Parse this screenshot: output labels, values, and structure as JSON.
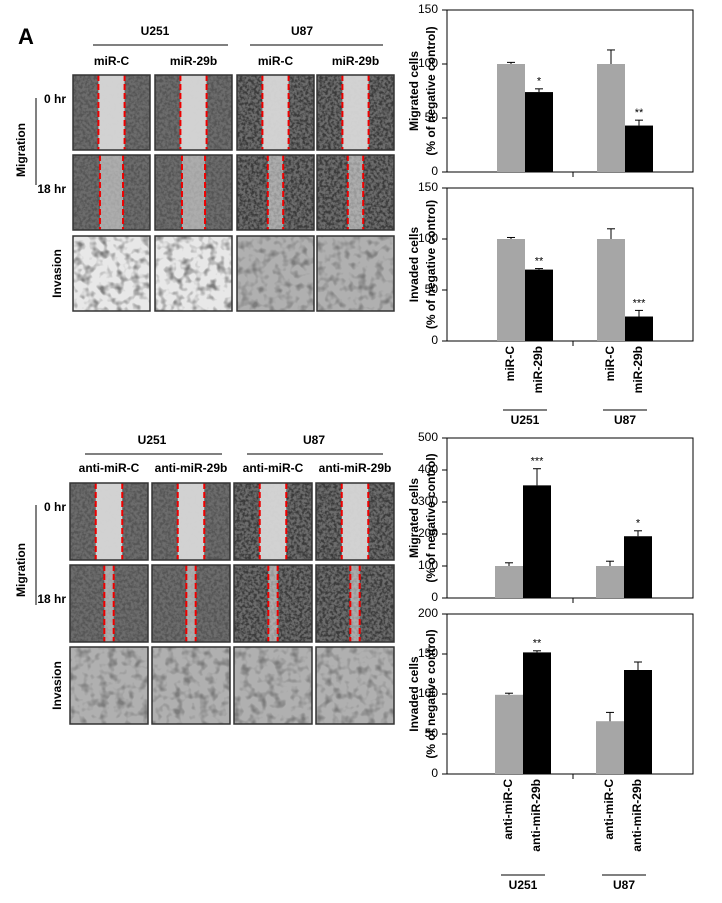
{
  "panel_label": "A",
  "top_panel": {
    "cell_lines": [
      "U251",
      "U87"
    ],
    "conditions": [
      "miR-C",
      "miR-29b",
      "miR-C",
      "miR-29b"
    ],
    "assay_label": "Migration",
    "time_points": [
      "0 hr",
      "18 hr"
    ],
    "invasion_label": "Invasion"
  },
  "bottom_panel": {
    "cell_lines": [
      "U251",
      "U87"
    ],
    "conditions": [
      "anti-miR-C",
      "anti-miR-29b",
      "anti-miR-C",
      "anti-miR-29b"
    ],
    "assay_label": "Migration",
    "time_points": [
      "0 hr",
      "18 hr"
    ],
    "invasion_label": "Invasion"
  },
  "chart_data": [
    {
      "type": "bar",
      "ylabel": [
        "Migrated cells",
        "(% of negative control)"
      ],
      "ylim": [
        0,
        150
      ],
      "yticks": [
        0,
        50,
        100,
        150
      ],
      "series": [
        {
          "color": "#a6a6a6",
          "values": [
            100,
            100
          ],
          "errors": [
            1.5,
            13
          ]
        },
        {
          "color": "#000000",
          "values": [
            74,
            43
          ],
          "errors": [
            3,
            5
          ],
          "significance": [
            "*",
            "**"
          ]
        }
      ]
    },
    {
      "type": "bar",
      "ylabel": [
        "Invaded cells",
        "(% of negative control)"
      ],
      "ylim": [
        0,
        150
      ],
      "yticks": [
        0,
        50,
        100,
        150
      ],
      "categories": [
        "U251",
        "U87"
      ],
      "series": [
        {
          "name": "miR-C",
          "color": "#a6a6a6",
          "values": [
            100,
            100
          ],
          "errors": [
            1.5,
            10
          ]
        },
        {
          "name": "miR-29b",
          "color": "#000000",
          "values": [
            70,
            24
          ],
          "errors": [
            1,
            6
          ],
          "significance": [
            "**",
            "***"
          ]
        }
      ]
    },
    {
      "type": "bar",
      "ylabel": [
        "Migrated cells",
        "(% of negative control)"
      ],
      "ylim": [
        0,
        500
      ],
      "yticks": [
        0,
        100,
        200,
        300,
        400,
        500
      ],
      "series": [
        {
          "color": "#a6a6a6",
          "values": [
            100,
            100
          ],
          "errors": [
            10,
            15
          ]
        },
        {
          "color": "#000000",
          "values": [
            352,
            193
          ],
          "errors": [
            52,
            17
          ],
          "significance": [
            "***",
            "*"
          ]
        }
      ]
    },
    {
      "type": "bar",
      "ylabel": [
        "Invaded cells",
        "(% of negative control)"
      ],
      "ylim": [
        0,
        200
      ],
      "yticks": [
        0,
        50,
        100,
        150,
        200
      ],
      "categories": [
        "U251",
        "U87"
      ],
      "series": [
        {
          "name": "anti-miR-C",
          "color": "#a6a6a6",
          "values": [
            99,
            66
          ],
          "errors": [
            2,
            11
          ]
        },
        {
          "name": "anti-miR-29b",
          "color": "#000000",
          "values": [
            152,
            130
          ],
          "errors": [
            2,
            10
          ],
          "significance": [
            "**",
            null
          ]
        }
      ]
    }
  ]
}
